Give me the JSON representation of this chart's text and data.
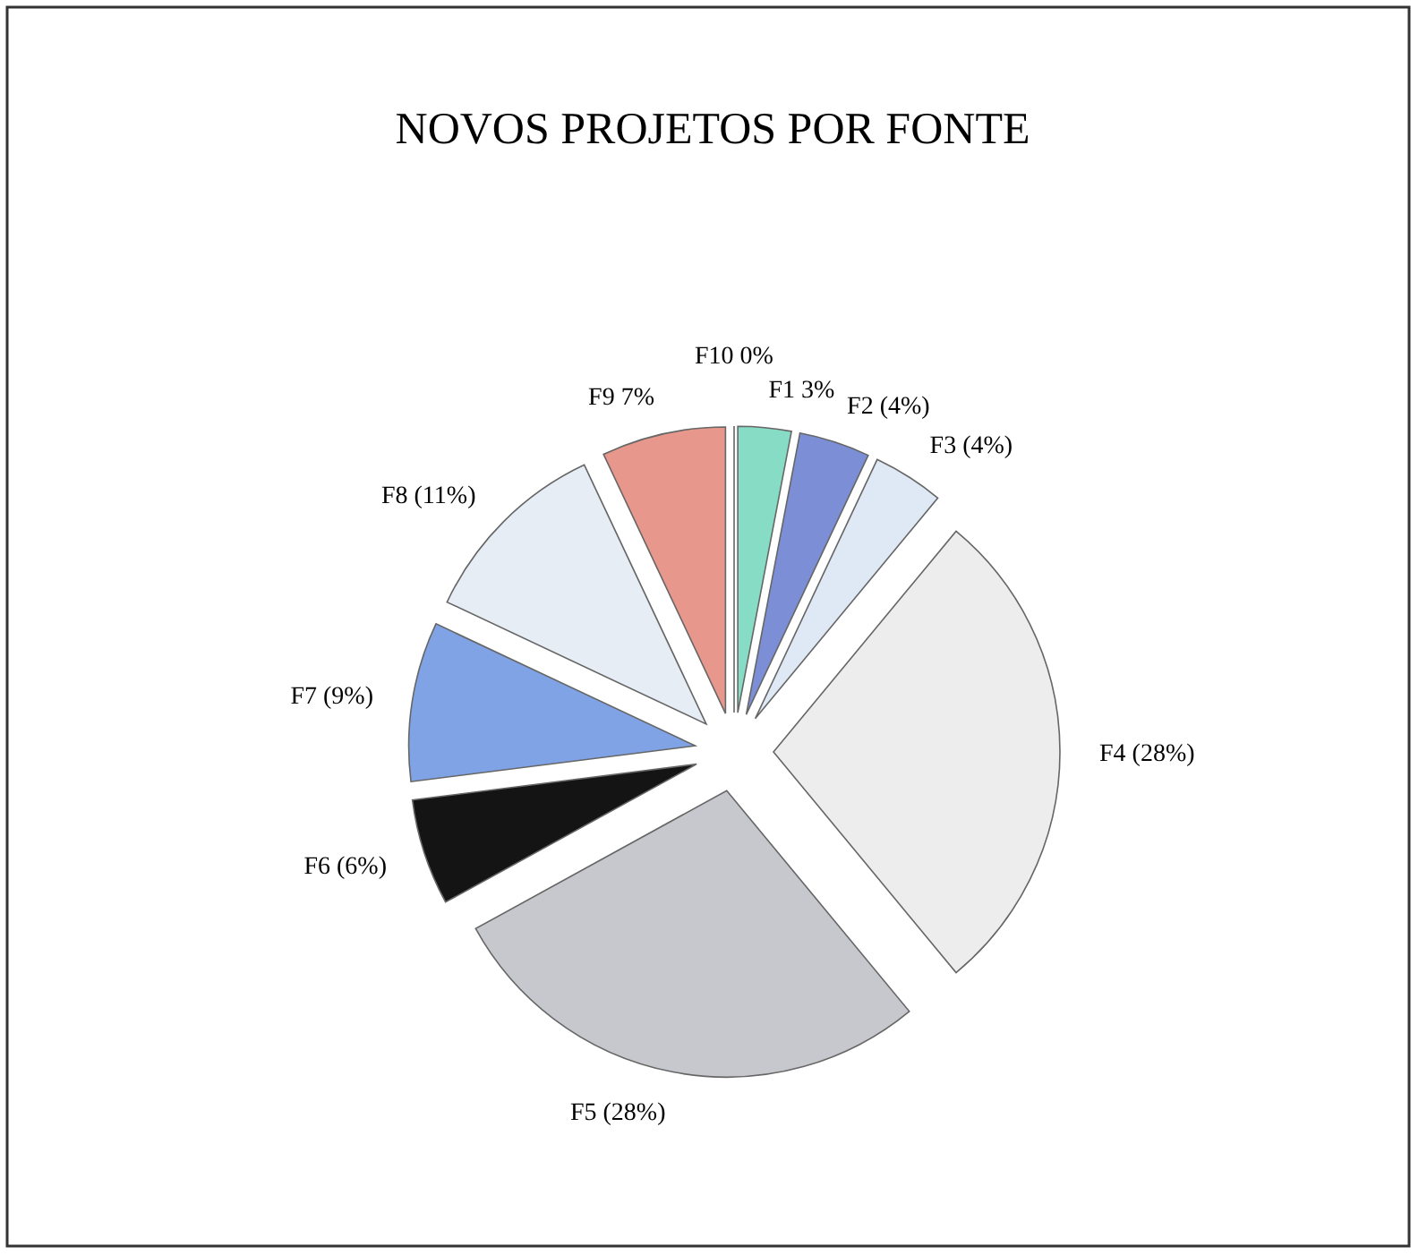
{
  "chart_data": {
    "type": "pie",
    "title": "NOVOS PROJETOS POR FONTE",
    "categories": [
      "F10",
      "F1",
      "F2",
      "F3",
      "F4",
      "F5",
      "F6",
      "F7",
      "F8",
      "F9"
    ],
    "values": [
      0,
      3,
      4,
      4,
      28,
      28,
      6,
      9,
      11,
      7
    ],
    "value_labels": [
      "0%",
      "3%",
      "(4%)",
      "(4%)",
      "(28%)",
      "(28%)",
      "(6%)",
      "(9%)",
      "(11%)",
      "7%"
    ],
    "colors": [
      "#ffffff",
      "#86dcc4",
      "#7b8ed6",
      "#dfe9f5",
      "#ededee",
      "#c6c8cd",
      "#141414",
      "#80a3e6",
      "#e6edf5",
      "#e8978c"
    ]
  }
}
